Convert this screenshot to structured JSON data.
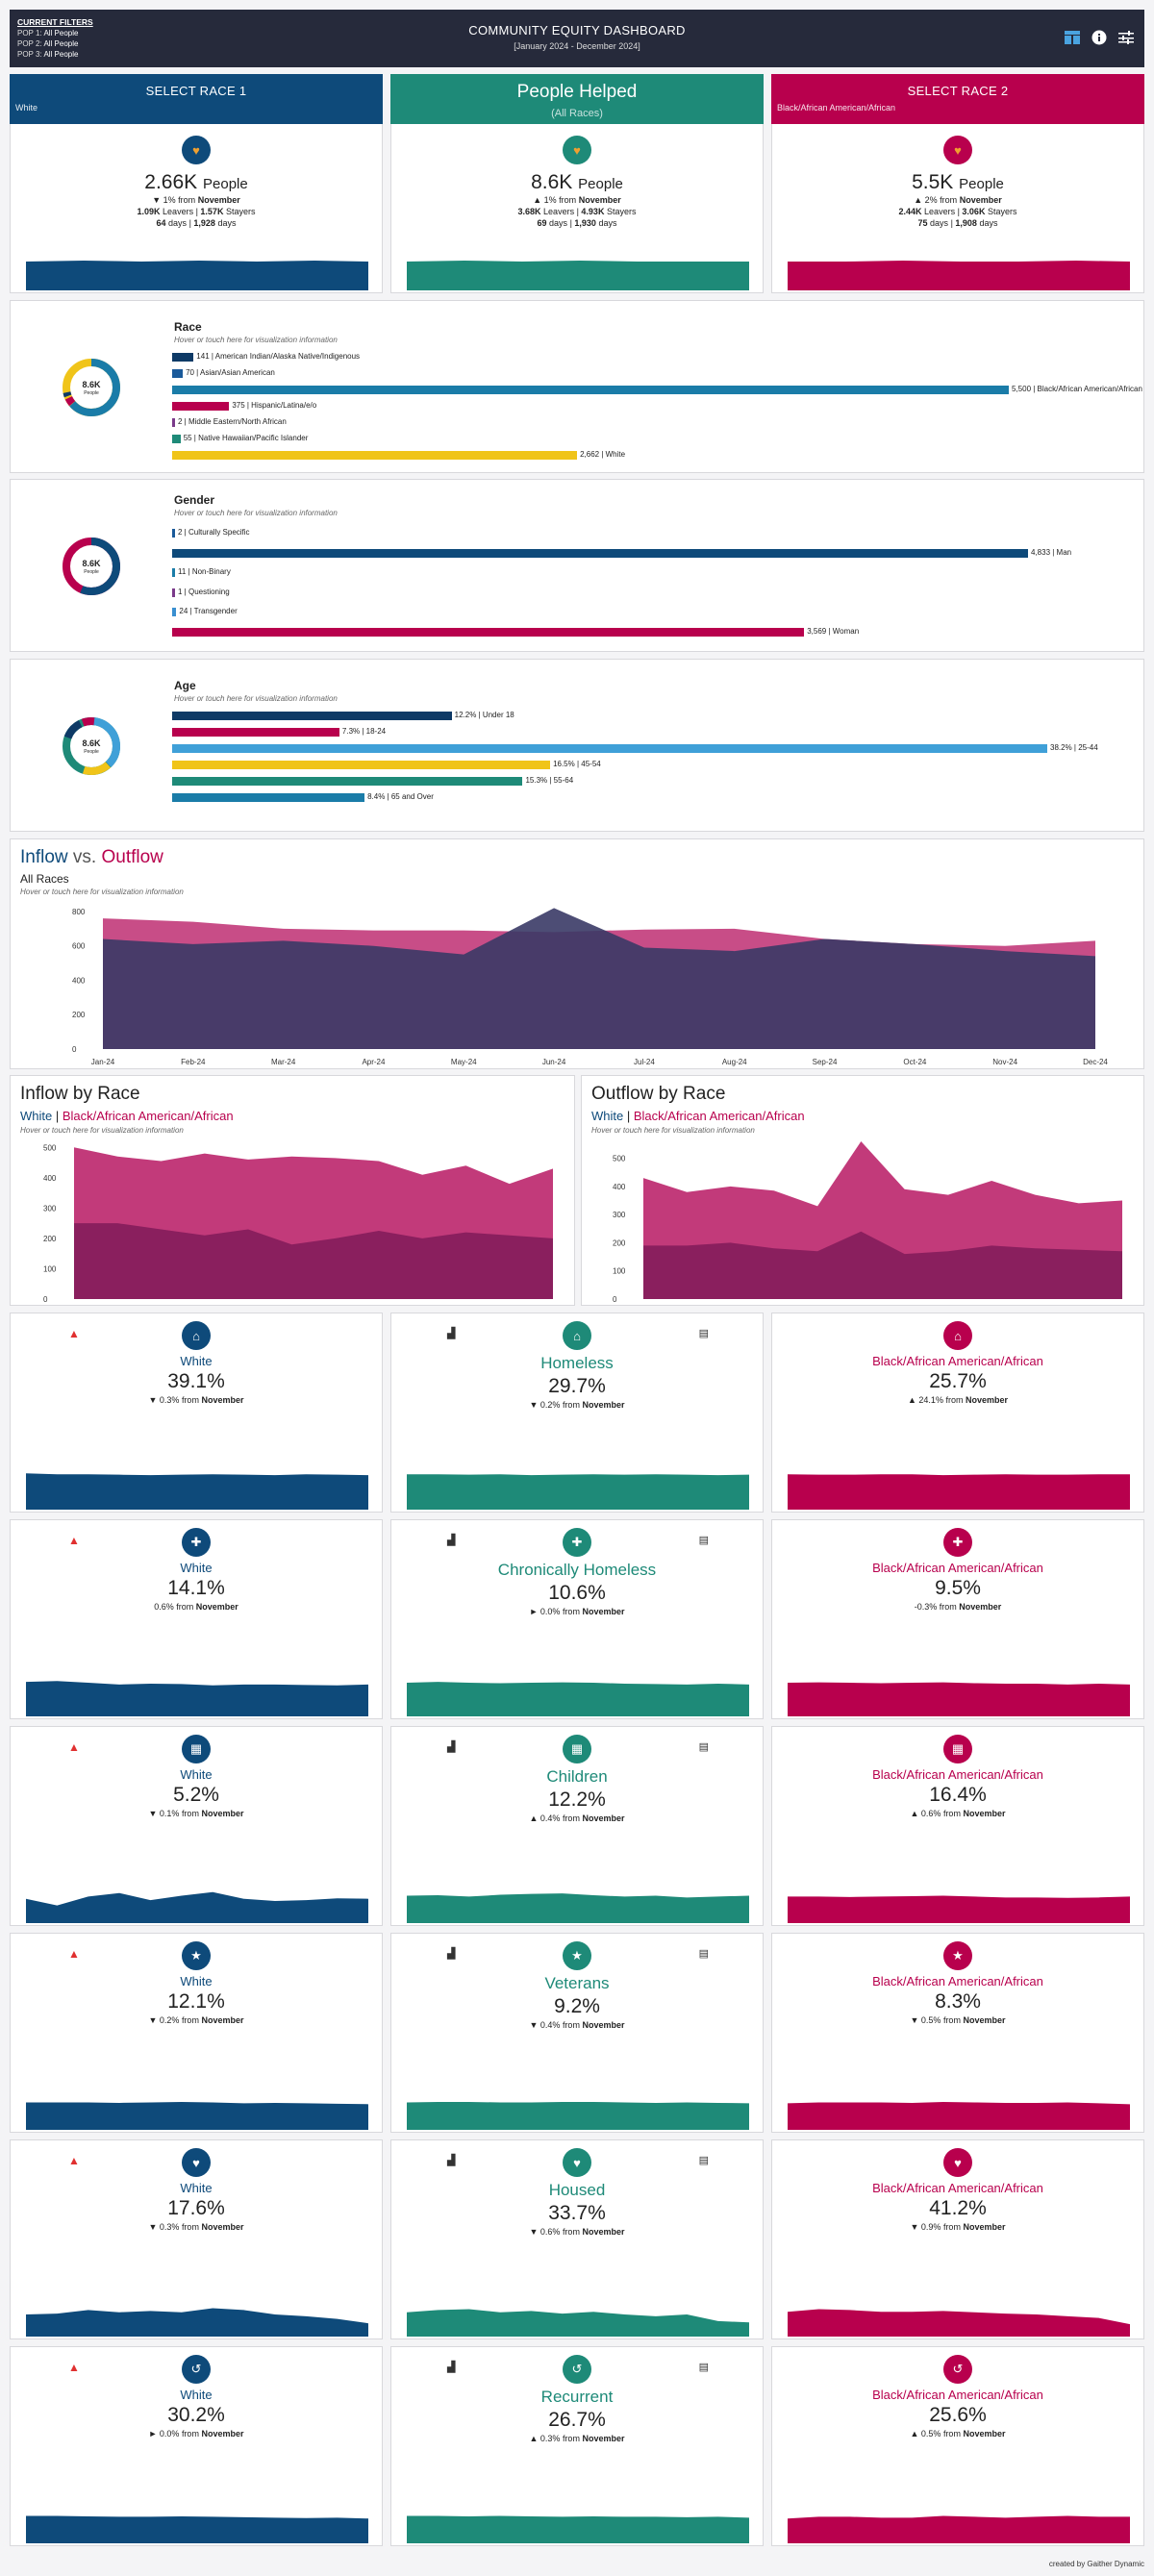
{
  "header": {
    "filters_label": "CURRENT FILTERS",
    "pop1_label": "POP 1:",
    "pop1": "All People",
    "pop2_label": "POP 2:",
    "pop2": "All People",
    "pop3_label": "POP 3:",
    "pop3": "All People",
    "title": "COMMUNITY EQUITY DASHBOARD",
    "subtitle": "[January 2024 - December 2024]",
    "icons": [
      "layout-icon",
      "info-icon",
      "filter-settings-icon"
    ]
  },
  "colors": {
    "blue": "#0e4a7a",
    "teal": "#1e8a78",
    "magenta": "#b8004d",
    "navy": "#262a3b"
  },
  "top": {
    "race1": {
      "heading": "SELECT RACE 1",
      "selection": "White",
      "value": "2.66K",
      "unit": "People",
      "change": "▼ 1% from",
      "month": "November",
      "leavers": "1.09K",
      "stayers": "1.57K",
      "leavers_label": "Leavers |",
      "stayers_label": "Stayers",
      "d1": "64",
      "d2": "1,928",
      "days": "days"
    },
    "people": {
      "heading": "People Helped",
      "sub": "(All Races)",
      "value": "8.6K",
      "unit": "People",
      "change": "▲ 1% from",
      "month": "November",
      "leavers": "3.68K",
      "stayers": "4.93K",
      "leavers_label": "Leavers |",
      "stayers_label": "Stayers",
      "d1": "69",
      "d2": "1,930",
      "days": "days"
    },
    "race2": {
      "heading": "SELECT RACE 2",
      "selection": "Black/African American/African",
      "value": "5.5K",
      "unit": "People",
      "change": "▲ 2% from",
      "month": "November",
      "leavers": "2.44K",
      "stayers": "3.06K",
      "leavers_label": "Leavers |",
      "stayers_label": "Stayers",
      "d1": "75",
      "d2": "1,908",
      "days": "days"
    }
  },
  "race": {
    "title": "Race",
    "hint": "Hover or touch here for visualization information",
    "donut_value": "8.6K",
    "donut_unit": "People",
    "bars": [
      {
        "value": 141,
        "label": "141 | American Indian/Alaska Native/Indigenous",
        "color": "#0e3a66"
      },
      {
        "value": 70,
        "label": "70 | Asian/Asian American",
        "color": "#1a5a9a"
      },
      {
        "value": 5500,
        "label": "5,500 | Black/African American/African",
        "color": "#1a7ca8"
      },
      {
        "value": 375,
        "label": "375 | Hispanic/Latina/e/o",
        "color": "#b8004d"
      },
      {
        "value": 2,
        "label": "2 | Middle Eastern/North African",
        "color": "#7a3a8a"
      },
      {
        "value": 55,
        "label": "55 | Native Hawaiian/Pacific Islander",
        "color": "#1e8a78"
      },
      {
        "value": 2662,
        "label": "2,662 | White",
        "color": "#f0c419"
      }
    ]
  },
  "gender": {
    "title": "Gender",
    "hint": "Hover or touch here for visualization information",
    "donut_value": "8.6K",
    "donut_unit": "People",
    "bars": [
      {
        "value": 2,
        "label": "2 | Culturally Specific",
        "color": "#1a5a9a"
      },
      {
        "value": 4833,
        "label": "4,833 | Man",
        "color": "#0e4a7a"
      },
      {
        "value": 11,
        "label": "11 | Non-Binary",
        "color": "#1a7ca8"
      },
      {
        "value": 1,
        "label": "1 | Questioning",
        "color": "#7a3a8a"
      },
      {
        "value": 24,
        "label": "24 | Transgender",
        "color": "#3a8fd0"
      },
      {
        "value": 3569,
        "label": "3,569 | Woman",
        "color": "#b8004d"
      }
    ]
  },
  "age": {
    "title": "Age",
    "hint": "Hover or touch here for visualization information",
    "donut_value": "8.6K",
    "donut_unit": "People",
    "bars": [
      {
        "value": 12.2,
        "label": "12.2% | Under 18",
        "color": "#0e3a66"
      },
      {
        "value": 7.3,
        "label": "7.3% | 18-24",
        "color": "#b8004d"
      },
      {
        "value": 38.2,
        "label": "38.2% | 25-44",
        "color": "#3fa0d8"
      },
      {
        "value": 16.5,
        "label": "16.5% | 45-54",
        "color": "#f0c419"
      },
      {
        "value": 15.3,
        "label": "15.3% | 55-64",
        "color": "#1e8a78"
      },
      {
        "value": 8.4,
        "label": "8.4% | 65 and Over",
        "color": "#1a7ca8"
      }
    ]
  },
  "flow": {
    "title_a": "Inflow",
    "title_vs": " vs. ",
    "title_b": "Outflow",
    "sub": "All Races",
    "hint": "Hover or touch here for visualization information"
  },
  "chart_data": [
    {
      "type": "area",
      "title": "Inflow vs. Outflow",
      "categories": [
        "Jan-24",
        "Feb-24",
        "Mar-24",
        "Apr-24",
        "May-24",
        "Jun-24",
        "Jul-24",
        "Aug-24",
        "Sep-24",
        "Oct-24",
        "Nov-24",
        "Dec-24"
      ],
      "ylim": [
        0,
        850
      ],
      "yticks": [
        0,
        200,
        400,
        600,
        800
      ],
      "series": [
        {
          "name": "Inflow",
          "color": "#c23a7a",
          "values": [
            760,
            740,
            700,
            690,
            690,
            680,
            695,
            700,
            640,
            610,
            600,
            630
          ]
        },
        {
          "name": "Outflow",
          "color": "#3a3a66",
          "values": [
            640,
            610,
            630,
            600,
            550,
            820,
            590,
            570,
            640,
            610,
            570,
            540
          ]
        }
      ]
    },
    {
      "type": "area",
      "title": "Inflow by Race",
      "sub_a": "White",
      "sub_sep": " | ",
      "sub_b": "Black/African American/African",
      "hint": "Hover or touch here for visualization information",
      "categories": [
        "Jan",
        "Feb",
        "Mar",
        "Apr",
        "May",
        "Jun",
        "Jul",
        "Aug",
        "Sep",
        "Oct",
        "Nov",
        "Dec"
      ],
      "ylim": [
        0,
        520
      ],
      "yticks": [
        0,
        100,
        200,
        300,
        400,
        500
      ],
      "series": [
        {
          "name": "Black/African American/African",
          "color": "#c23a7a",
          "values": [
            500,
            470,
            455,
            480,
            460,
            470,
            465,
            455,
            410,
            440,
            380,
            430
          ]
        },
        {
          "name": "White",
          "color": "#8a1f5e",
          "values": [
            250,
            250,
            230,
            210,
            230,
            180,
            200,
            225,
            200,
            220,
            210,
            200
          ]
        }
      ]
    },
    {
      "type": "area",
      "title": "Outflow by Race",
      "sub_a": "White",
      "sub_sep": " | ",
      "sub_b": "Black/African American/African",
      "hint": "Hover or touch here for visualization information",
      "categories": [
        "Jan",
        "Feb",
        "Mar",
        "Apr",
        "May",
        "Jun",
        "Jul",
        "Aug",
        "Sep",
        "Oct",
        "Nov",
        "Dec"
      ],
      "ylim": [
        0,
        560
      ],
      "yticks": [
        0,
        100,
        200,
        300,
        400,
        500
      ],
      "series": [
        {
          "name": "Black/African American/African",
          "color": "#c23a7a",
          "values": [
            430,
            380,
            400,
            385,
            330,
            560,
            390,
            370,
            420,
            370,
            340,
            350
          ]
        },
        {
          "name": "White",
          "color": "#8a1f5e",
          "values": [
            190,
            190,
            200,
            180,
            170,
            240,
            160,
            170,
            190,
            180,
            175,
            170
          ]
        }
      ]
    }
  ],
  "metrics": [
    {
      "label": "Homeless",
      "icon": "homeless-icon",
      "glyph": "⌂",
      "left": {
        "name": "White",
        "value": "39.1%",
        "change": "▼ 0.3% from",
        "month": "November",
        "trend": [
          0.82,
          0.8,
          0.8,
          0.79,
          0.78,
          0.79,
          0.8,
          0.79,
          0.78,
          0.8,
          0.79,
          0.78
        ]
      },
      "mid": {
        "name": "Homeless",
        "value": "29.7%",
        "change": "▼ 0.2% from",
        "month": "November",
        "trend": [
          0.8,
          0.8,
          0.79,
          0.8,
          0.78,
          0.79,
          0.8,
          0.79,
          0.8,
          0.79,
          0.78,
          0.79
        ]
      },
      "right": {
        "name": "Black/African American/African",
        "value": "25.7%",
        "change": "▲ 24.1% from",
        "month": "November",
        "trend": [
          0.8,
          0.79,
          0.79,
          0.8,
          0.8,
          0.78,
          0.79,
          0.8,
          0.79,
          0.79,
          0.8,
          0.8
        ]
      }
    },
    {
      "label": "Chronically Homeless",
      "icon": "medical-cross-icon",
      "glyph": "✚",
      "left": {
        "name": "White",
        "value": "14.1%",
        "change": "0.6% from",
        "month": "November",
        "trend": [
          0.78,
          0.8,
          0.76,
          0.72,
          0.74,
          0.73,
          0.7,
          0.72,
          0.72,
          0.71,
          0.7,
          0.72
        ]
      },
      "mid": {
        "name": "Chronically Homeless",
        "value": "10.6%",
        "change": "► 0.0% from",
        "month": "November",
        "trend": [
          0.76,
          0.78,
          0.76,
          0.75,
          0.76,
          0.77,
          0.76,
          0.74,
          0.73,
          0.72,
          0.74,
          0.72
        ]
      },
      "right": {
        "name": "Black/African American/African",
        "value": "9.5%",
        "change": "-0.3% from",
        "month": "November",
        "trend": [
          0.76,
          0.77,
          0.76,
          0.75,
          0.76,
          0.77,
          0.75,
          0.74,
          0.74,
          0.72,
          0.74,
          0.72
        ]
      }
    },
    {
      "label": "Children",
      "icon": "children-blocks-icon",
      "glyph": "▦",
      "left": {
        "name": "White",
        "value": "5.2%",
        "change": "▼ 0.1% from",
        "month": "November",
        "trend": [
          0.55,
          0.4,
          0.6,
          0.68,
          0.52,
          0.62,
          0.7,
          0.55,
          0.5,
          0.52,
          0.56,
          0.55
        ]
      },
      "mid": {
        "name": "Children",
        "value": "12.2%",
        "change": "▲ 0.4% from",
        "month": "November",
        "trend": [
          0.62,
          0.63,
          0.6,
          0.64,
          0.66,
          0.67,
          0.63,
          0.6,
          0.62,
          0.58,
          0.6,
          0.62
        ]
      },
      "right": {
        "name": "Black/African American/African",
        "value": "16.4%",
        "change": "▲ 0.6% from",
        "month": "November",
        "trend": [
          0.6,
          0.6,
          0.59,
          0.6,
          0.61,
          0.62,
          0.6,
          0.58,
          0.58,
          0.57,
          0.58,
          0.6
        ]
      }
    },
    {
      "label": "Veterans",
      "icon": "veteran-icon",
      "glyph": "★",
      "left": {
        "name": "White",
        "value": "12.1%",
        "change": "▼ 0.2% from",
        "month": "November",
        "trend": [
          0.62,
          0.62,
          0.62,
          0.61,
          0.62,
          0.63,
          0.62,
          0.6,
          0.61,
          0.6,
          0.59,
          0.58
        ]
      },
      "mid": {
        "name": "Veterans",
        "value": "9.2%",
        "change": "▼ 0.4% from",
        "month": "November",
        "trend": [
          0.62,
          0.63,
          0.63,
          0.62,
          0.62,
          0.63,
          0.63,
          0.62,
          0.61,
          0.62,
          0.61,
          0.6
        ]
      },
      "right": {
        "name": "Black/African American/African",
        "value": "8.3%",
        "change": "▼ 0.5% from",
        "month": "November",
        "trend": [
          0.6,
          0.62,
          0.62,
          0.62,
          0.61,
          0.63,
          0.62,
          0.61,
          0.61,
          0.62,
          0.6,
          0.58
        ]
      }
    },
    {
      "label": "Housed",
      "icon": "housed-icon",
      "glyph": "♥",
      "left": {
        "name": "White",
        "value": "17.6%",
        "change": "▼ 0.3% from",
        "month": "November",
        "trend": [
          0.5,
          0.52,
          0.6,
          0.55,
          0.58,
          0.55,
          0.64,
          0.6,
          0.5,
          0.46,
          0.4,
          0.3
        ]
      },
      "mid": {
        "name": "Housed",
        "value": "33.7%",
        "change": "▼ 0.6% from",
        "month": "November",
        "trend": [
          0.55,
          0.6,
          0.62,
          0.55,
          0.58,
          0.52,
          0.56,
          0.5,
          0.46,
          0.5,
          0.35,
          0.32
        ]
      },
      "right": {
        "name": "Black/African American/African",
        "value": "41.2%",
        "change": "▼ 0.9% from",
        "month": "November",
        "trend": [
          0.56,
          0.62,
          0.6,
          0.56,
          0.56,
          0.58,
          0.55,
          0.52,
          0.5,
          0.46,
          0.42,
          0.28
        ]
      }
    },
    {
      "label": "Recurrent",
      "icon": "recurrent-icon",
      "glyph": "↺",
      "left": {
        "name": "White",
        "value": "30.2%",
        "change": "► 0.0% from",
        "month": "November",
        "trend": [
          0.62,
          0.62,
          0.61,
          0.6,
          0.6,
          0.61,
          0.6,
          0.59,
          0.58,
          0.57,
          0.58,
          0.56
        ]
      },
      "mid": {
        "name": "Recurrent",
        "value": "26.7%",
        "change": "▲ 0.3% from",
        "month": "November",
        "trend": [
          0.62,
          0.62,
          0.61,
          0.62,
          0.61,
          0.6,
          0.61,
          0.6,
          0.6,
          0.59,
          0.6,
          0.58
        ]
      },
      "right": {
        "name": "Black/African American/African",
        "value": "25.6%",
        "change": "▲ 0.5% from",
        "month": "November",
        "trend": [
          0.56,
          0.6,
          0.6,
          0.58,
          0.58,
          0.62,
          0.6,
          0.58,
          0.6,
          0.62,
          0.6,
          0.6
        ]
      }
    }
  ],
  "footer": "created by Gaither Dynamic"
}
